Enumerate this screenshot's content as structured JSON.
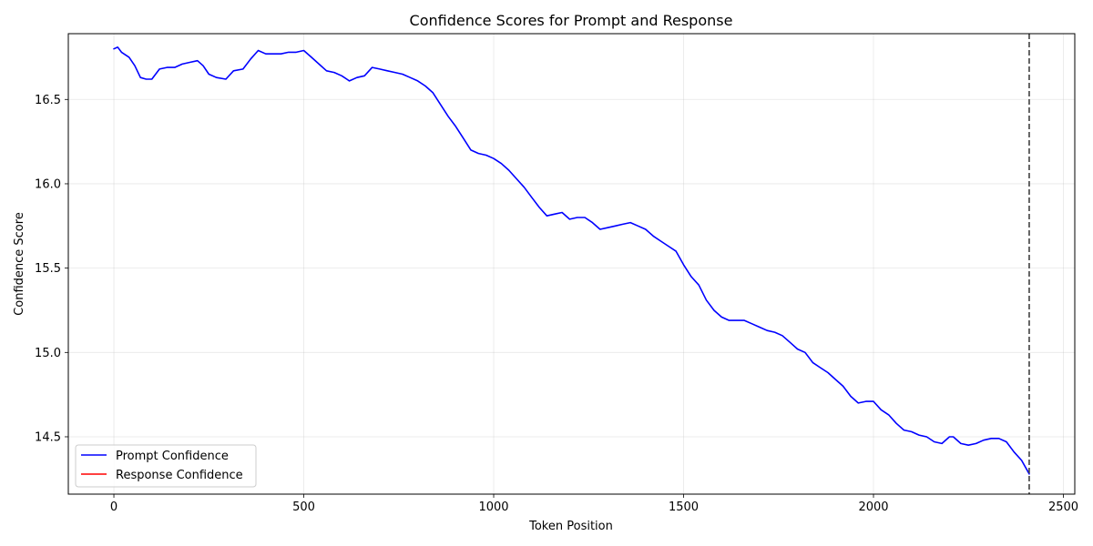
{
  "chart_data": {
    "type": "line",
    "title": "Confidence Scores for Prompt and Response",
    "xlabel": "Token Position",
    "ylabel": "Confidence Score",
    "xlim": [
      -120,
      2530
    ],
    "ylim": [
      14.16,
      16.89
    ],
    "xticks": [
      0,
      500,
      1000,
      1500,
      2000,
      2500
    ],
    "yticks": [
      14.5,
      15.0,
      15.5,
      16.0,
      16.5
    ],
    "xtick_labels": [
      "0",
      "500",
      "1000",
      "1500",
      "2000",
      "2500"
    ],
    "ytick_labels": [
      "14.5",
      "15.0",
      "15.5",
      "16.0",
      "16.5"
    ],
    "grid": true,
    "legend_position": "lower-left",
    "series": [
      {
        "name": "Prompt Confidence",
        "color": "#0000ff",
        "x": [
          0,
          10,
          20,
          40,
          55,
          70,
          85,
          100,
          120,
          140,
          160,
          180,
          200,
          220,
          235,
          250,
          270,
          295,
          315,
          340,
          360,
          380,
          400,
          420,
          440,
          460,
          480,
          500,
          520,
          540,
          560,
          580,
          600,
          620,
          640,
          660,
          680,
          700,
          720,
          740,
          760,
          780,
          800,
          820,
          840,
          860,
          880,
          900,
          920,
          940,
          960,
          980,
          1000,
          1020,
          1040,
          1060,
          1080,
          1100,
          1120,
          1140,
          1160,
          1180,
          1200,
          1220,
          1240,
          1260,
          1280,
          1300,
          1320,
          1340,
          1360,
          1380,
          1400,
          1420,
          1440,
          1460,
          1480,
          1500,
          1520,
          1540,
          1560,
          1580,
          1600,
          1620,
          1640,
          1660,
          1680,
          1700,
          1720,
          1740,
          1760,
          1780,
          1800,
          1820,
          1840,
          1860,
          1880,
          1900,
          1920,
          1940,
          1960,
          1980,
          2000,
          2020,
          2040,
          2060,
          2080,
          2100,
          2120,
          2140,
          2160,
          2180,
          2200,
          2210,
          2230,
          2250,
          2270,
          2290,
          2310,
          2330,
          2350,
          2370,
          2390,
          2410
        ],
        "y": [
          16.8,
          16.81,
          16.78,
          16.75,
          16.7,
          16.63,
          16.62,
          16.62,
          16.68,
          16.69,
          16.69,
          16.71,
          16.72,
          16.73,
          16.7,
          16.65,
          16.63,
          16.62,
          16.67,
          16.68,
          16.74,
          16.79,
          16.77,
          16.77,
          16.77,
          16.78,
          16.78,
          16.79,
          16.75,
          16.71,
          16.67,
          16.66,
          16.64,
          16.61,
          16.63,
          16.64,
          16.69,
          16.68,
          16.67,
          16.66,
          16.65,
          16.63,
          16.61,
          16.58,
          16.54,
          16.47,
          16.4,
          16.34,
          16.27,
          16.2,
          16.18,
          16.17,
          16.15,
          16.12,
          16.08,
          16.03,
          15.98,
          15.92,
          15.86,
          15.81,
          15.82,
          15.83,
          15.79,
          15.8,
          15.8,
          15.77,
          15.73,
          15.74,
          15.75,
          15.76,
          15.77,
          15.75,
          15.73,
          15.69,
          15.66,
          15.63,
          15.6,
          15.52,
          15.45,
          15.4,
          15.31,
          15.25,
          15.21,
          15.19,
          15.19,
          15.19,
          15.17,
          15.15,
          15.13,
          15.12,
          15.1,
          15.06,
          15.02,
          15.0,
          14.94,
          14.91,
          14.88,
          14.84,
          14.8,
          14.74,
          14.7,
          14.71,
          14.71,
          14.66,
          14.63,
          14.58,
          14.54,
          14.53,
          14.51,
          14.5,
          14.47,
          14.46,
          14.5,
          14.5,
          14.46,
          14.45,
          14.46,
          14.48,
          14.49,
          14.49,
          14.47,
          14.41,
          14.36,
          14.28
        ]
      },
      {
        "name": "Response Confidence",
        "color": "#ff0000",
        "x": [],
        "y": []
      }
    ],
    "boundary_line": {
      "x": 2410,
      "color": "#404040",
      "style": "dashed"
    }
  }
}
